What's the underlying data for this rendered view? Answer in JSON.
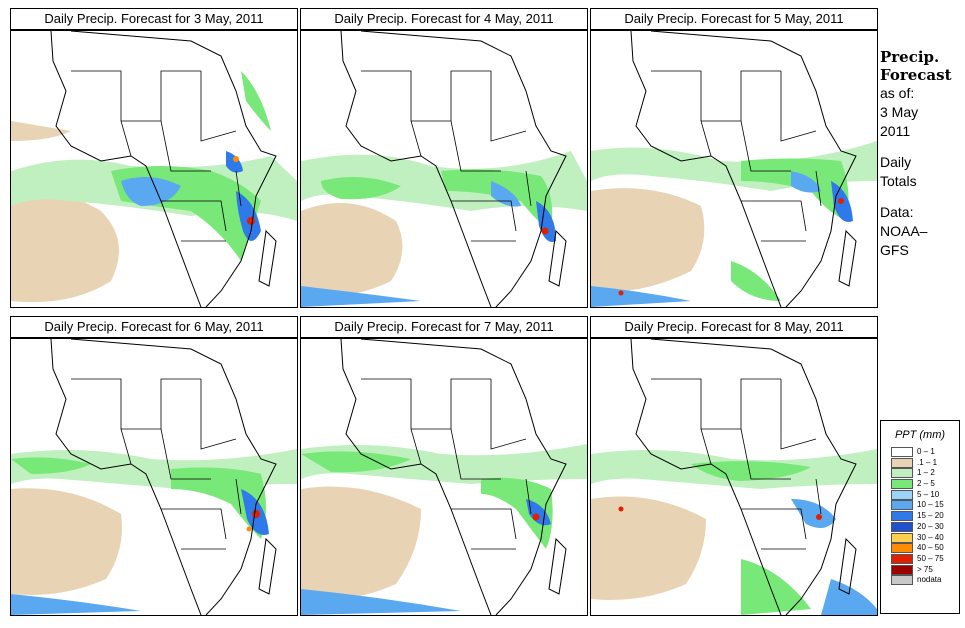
{
  "panels": [
    {
      "title": "Daily Precip. Forecast for  3 May, 2011"
    },
    {
      "title": "Daily Precip. Forecast for  4 May, 2011"
    },
    {
      "title": "Daily Precip. Forecast for  5 May, 2011"
    },
    {
      "title": "Daily Precip. Forecast for  6 May, 2011"
    },
    {
      "title": "Daily Precip. Forecast for  7 May, 2011"
    },
    {
      "title": "Daily Precip. Forecast for  8 May, 2011"
    }
  ],
  "side": {
    "heading": [
      "Precip.",
      "Forecast"
    ],
    "asof_label": "as of:",
    "date_lines": [
      "3 May",
      "2011"
    ],
    "totals_lines": [
      "Daily",
      "Totals"
    ],
    "data_lines": [
      "Data:",
      "NOAA–",
      "GFS"
    ]
  },
  "legend": {
    "title": "PPT (mm)",
    "bins": [
      {
        "label": "0 – 1",
        "color": "#ffffff"
      },
      {
        "label": ".1 – 1",
        "color": "#e8d4b4"
      },
      {
        "label": "1 – 2",
        "color": "#c0f0c0"
      },
      {
        "label": "2 – 5",
        "color": "#78e878"
      },
      {
        "label": "5 – 10",
        "color": "#9bd4f8"
      },
      {
        "label": "10 – 15",
        "color": "#5aa8f0"
      },
      {
        "label": "15 – 20",
        "color": "#2f7ae8"
      },
      {
        "label": "20 – 30",
        "color": "#1f50d0"
      },
      {
        "label": "30 – 40",
        "color": "#ffd050"
      },
      {
        "label": "40 – 50",
        "color": "#ff8c00"
      },
      {
        "label": "50 – 75",
        "color": "#e02000"
      },
      {
        "label": "> 75",
        "color": "#9a0000"
      },
      {
        "label": "nodata",
        "color": "#c8c8c8"
      }
    ]
  }
}
